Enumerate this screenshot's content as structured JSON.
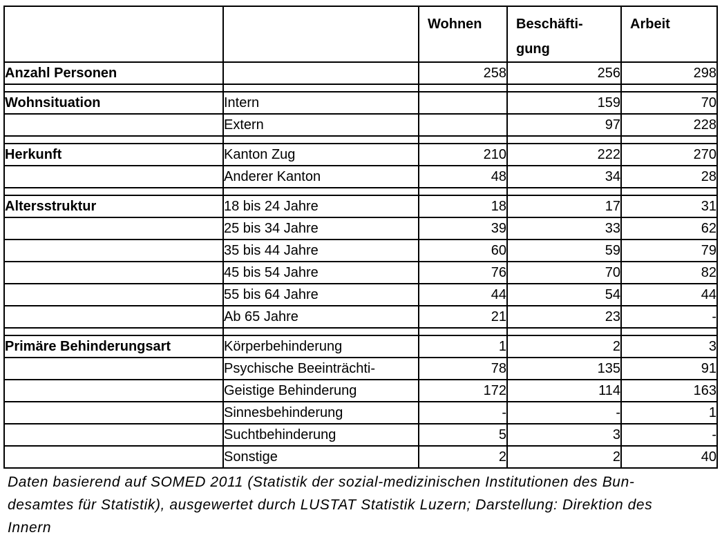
{
  "colors": {
    "text": "#000000",
    "border": "#000000",
    "background": "#ffffff"
  },
  "table": {
    "header": {
      "category": "",
      "subcategory": "",
      "wohnen": "Wohnen",
      "beschaeftigung": "Beschäfti-\ngung",
      "arbeit": "Arbeit"
    },
    "rows": [
      {
        "category": "Anzahl Personen",
        "label": "",
        "values": [
          "258",
          "256",
          "298"
        ]
      },
      {
        "spacer": true
      },
      {
        "category": "Wohnsituation",
        "label": "Intern",
        "values": [
          "",
          "159",
          "70"
        ]
      },
      {
        "category": "",
        "label": "Extern",
        "values": [
          "",
          "97",
          "228"
        ]
      },
      {
        "spacer": true
      },
      {
        "category": "Herkunft",
        "label": "Kanton Zug",
        "values": [
          "210",
          "222",
          "270"
        ]
      },
      {
        "category": "",
        "label": "Anderer Kanton",
        "values": [
          "48",
          "34",
          "28"
        ]
      },
      {
        "spacer": true
      },
      {
        "category": "Altersstruktur",
        "label": "18 bis 24 Jahre",
        "values": [
          "18",
          "17",
          "31"
        ]
      },
      {
        "category": "",
        "label": "25 bis 34 Jahre",
        "values": [
          "39",
          "33",
          "62"
        ]
      },
      {
        "category": "",
        "label": "35 bis 44 Jahre",
        "values": [
          "60",
          "59",
          "79"
        ]
      },
      {
        "category": "",
        "label": "45 bis 54 Jahre",
        "values": [
          "76",
          "70",
          "82"
        ]
      },
      {
        "category": "",
        "label": "55 bis 64 Jahre",
        "values": [
          "44",
          "54",
          "44"
        ]
      },
      {
        "category": "",
        "label": "Ab 65 Jahre",
        "values": [
          "21",
          "23",
          "-"
        ]
      },
      {
        "spacer": true
      },
      {
        "category": "Primäre Behinderungsart",
        "label": "Körperbehinderung",
        "values": [
          "1",
          "2",
          "3"
        ]
      },
      {
        "category": "",
        "label": "Psychische Beeinträchti-",
        "values": [
          "78",
          "135",
          "91"
        ]
      },
      {
        "category": "",
        "label": "Geistige Behinderung",
        "values": [
          "172",
          "114",
          "163"
        ]
      },
      {
        "category": "",
        "label": "Sinnesbehinderung",
        "values": [
          "-",
          "-",
          "1"
        ]
      },
      {
        "category": "",
        "label": "Suchtbehinderung",
        "values": [
          "5",
          "3",
          "-"
        ]
      },
      {
        "category": "",
        "label": "Sonstige",
        "values": [
          "2",
          "2",
          "40"
        ]
      }
    ]
  },
  "footnote": {
    "text": "Daten basierend auf SOMED 2011 (Statistik der sozial-medizinischen Institutionen des Bun-\ndesamtes für Statistik), ausgewertet durch LUSTAT Statistik Luzern; Darstellung: Direktion des\nInnern"
  }
}
